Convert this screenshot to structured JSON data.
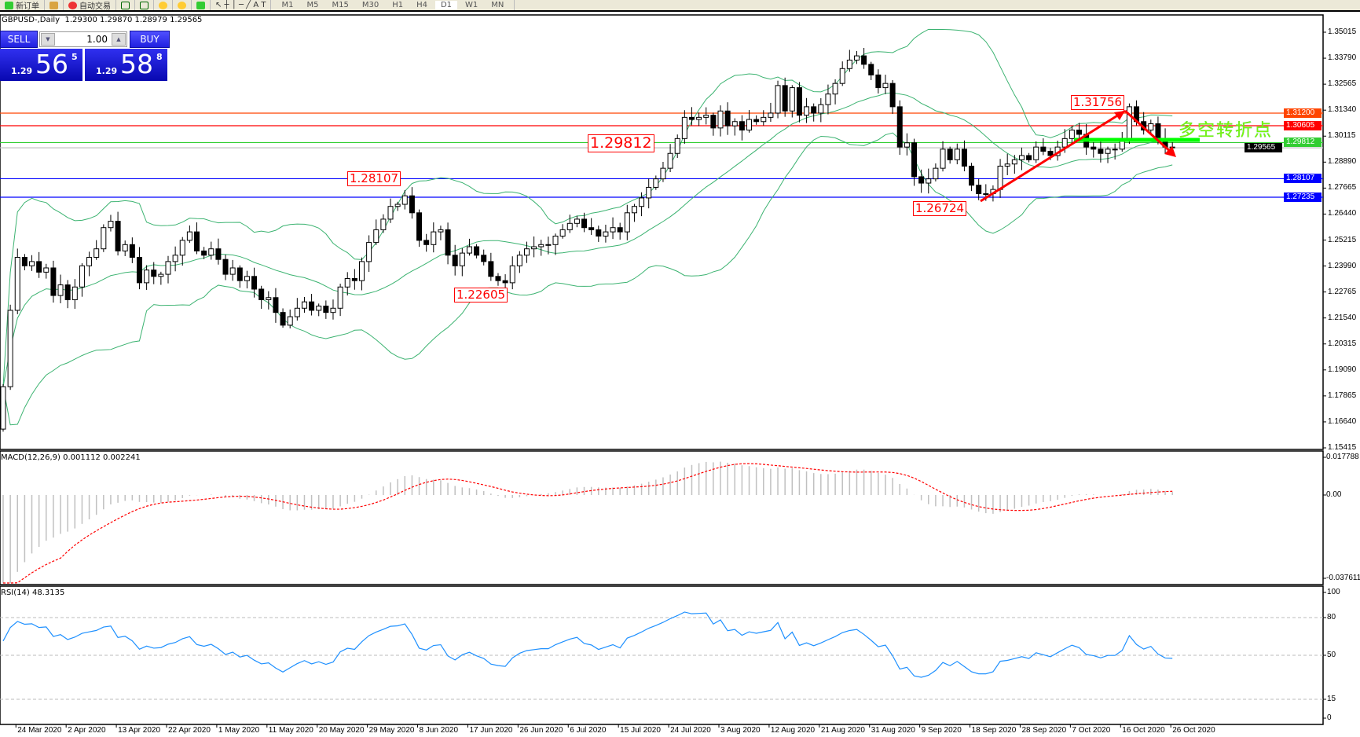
{
  "toolbar": {
    "new_order": "新订单",
    "auto_trading": "自动交易",
    "timeframes": [
      "M1",
      "M5",
      "M15",
      "M30",
      "H1",
      "H4",
      "D1",
      "W1",
      "MN"
    ]
  },
  "chart_header": {
    "symbol": "GBPUSD-,Daily",
    "ohlc": "1.29300 1.29870 1.28979 1.29565"
  },
  "one_click": {
    "sell": "SELL",
    "buy": "BUY",
    "volume": "1.00",
    "sell_price": {
      "prefix": "1.29",
      "big": "56",
      "sup": "5"
    },
    "buy_price": {
      "prefix": "1.29",
      "big": "58",
      "sup": "8"
    }
  },
  "annotations": {
    "label_129812": "1.29812",
    "label_128107": "1.28107",
    "label_122605": "1.22605",
    "label_126724": "1.26724",
    "label_131756": "1.31756",
    "turning_point_text": "多空转折点"
  },
  "chart_data": [
    {
      "type": "candlestick",
      "symbol": "GBPUSD-",
      "timeframe": "Daily",
      "indicators": [
        "Bollinger Bands (20, 2)"
      ],
      "closes": [
        1.183,
        1.219,
        1.244,
        1.24,
        1.242,
        1.237,
        1.239,
        1.226,
        1.231,
        1.224,
        1.23,
        1.24,
        1.244,
        1.248,
        1.258,
        1.261,
        1.247,
        1.25,
        1.244,
        1.232,
        1.238,
        1.235,
        1.236,
        1.242,
        1.245,
        1.252,
        1.256,
        1.247,
        1.245,
        1.248,
        1.243,
        1.236,
        1.239,
        1.233,
        1.235,
        1.229,
        1.224,
        1.225,
        1.218,
        1.212,
        1.216,
        1.22,
        1.223,
        1.219,
        1.221,
        1.218,
        1.22,
        1.23,
        1.234,
        1.233,
        1.242,
        1.251,
        1.257,
        1.262,
        1.268,
        1.269,
        1.273,
        1.265,
        1.252,
        1.25,
        1.256,
        1.257,
        1.245,
        1.24,
        1.246,
        1.249,
        1.245,
        1.242,
        1.235,
        1.233,
        1.232,
        1.24,
        1.245,
        1.248,
        1.249,
        1.25,
        1.25,
        1.254,
        1.257,
        1.26,
        1.262,
        1.258,
        1.257,
        1.254,
        1.256,
        1.258,
        1.256,
        1.265,
        1.268,
        1.272,
        1.277,
        1.281,
        1.286,
        1.293,
        1.3,
        1.31,
        1.309,
        1.31,
        1.311,
        1.305,
        1.313,
        1.306,
        1.308,
        1.304,
        1.309,
        1.308,
        1.31,
        1.312,
        1.325,
        1.313,
        1.324,
        1.311,
        1.315,
        1.312,
        1.316,
        1.321,
        1.326,
        1.333,
        1.337,
        1.339,
        1.335,
        1.33,
        1.324,
        1.326,
        1.315,
        1.296,
        1.298,
        1.282,
        1.279,
        1.281,
        1.286,
        1.295,
        1.29,
        1.295,
        1.287,
        1.278,
        1.274,
        1.274,
        1.276,
        1.287,
        1.288,
        1.29,
        1.292,
        1.29,
        1.296,
        1.294,
        1.292,
        1.296,
        1.3,
        1.304,
        1.302,
        1.296,
        1.295,
        1.293,
        1.295,
        1.295,
        1.299,
        1.315,
        1.308,
        1.304,
        1.307,
        1.3,
        1.296,
        1.29565
      ],
      "price_axis_ticks": [
        "1.35015",
        "1.33790",
        "1.32565",
        "1.31340",
        "1.30115",
        "1.28890",
        "1.27665",
        "1.26440",
        "1.25215",
        "1.23990",
        "1.22765",
        "1.21540",
        "1.20315",
        "1.19090",
        "1.17865",
        "1.16640",
        "1.15415"
      ],
      "ylim": [
        1.15415,
        1.35015
      ],
      "date_labels": [
        "24 Mar 2020",
        "2 Apr 2020",
        "13 Apr 2020",
        "22 Apr 2020",
        "1 May 2020",
        "11 May 2020",
        "20 May 2020",
        "29 May 2020",
        "8 Jun 2020",
        "17 Jun 2020",
        "26 Jun 2020",
        "6 Jul 2020",
        "15 Jul 2020",
        "24 Jul 2020",
        "3 Aug 2020",
        "12 Aug 2020",
        "21 Aug 2020",
        "31 Aug 2020",
        "9 Sep 2020",
        "18 Sep 2020",
        "28 Sep 2020",
        "7 Oct 2020",
        "16 Oct 2020",
        "26 Oct 2020"
      ],
      "horizontal_lines": [
        {
          "price": "1.31200",
          "color": "#ff4500"
        },
        {
          "price": "1.30605",
          "color": "#ff0000"
        },
        {
          "price": "1.29812",
          "color": "#32cd32"
        },
        {
          "price": "1.29565",
          "color": "#c0c0c0",
          "label_color": "#000000"
        },
        {
          "price": "1.28107",
          "color": "#0000ff"
        },
        {
          "price": "1.27235",
          "color": "#0000ff"
        }
      ],
      "colors": {
        "bull_body": "#ffffff",
        "bear_body": "#000000",
        "bands": "#3cb371",
        "arrows": "#ff0000",
        "turning_bar": "#00ff00"
      }
    },
    {
      "type": "macd",
      "label": "MACD(12,26,9) 0.001112 0.002241",
      "axis_ticks": [
        "0.017788",
        "0.00",
        "-0.037611"
      ],
      "ylim": [
        -0.037611,
        0.017788
      ],
      "colors": {
        "histogram": "#c0c0c0",
        "signal": "#ff0000"
      }
    },
    {
      "type": "rsi",
      "label": "RSI(14) 48.3135",
      "axis_ticks": [
        "100",
        "80",
        "50",
        "15",
        "0"
      ],
      "levels": [
        80,
        50,
        15
      ],
      "ylim": [
        0,
        100
      ],
      "colors": {
        "line": "#1e90ff"
      }
    }
  ]
}
